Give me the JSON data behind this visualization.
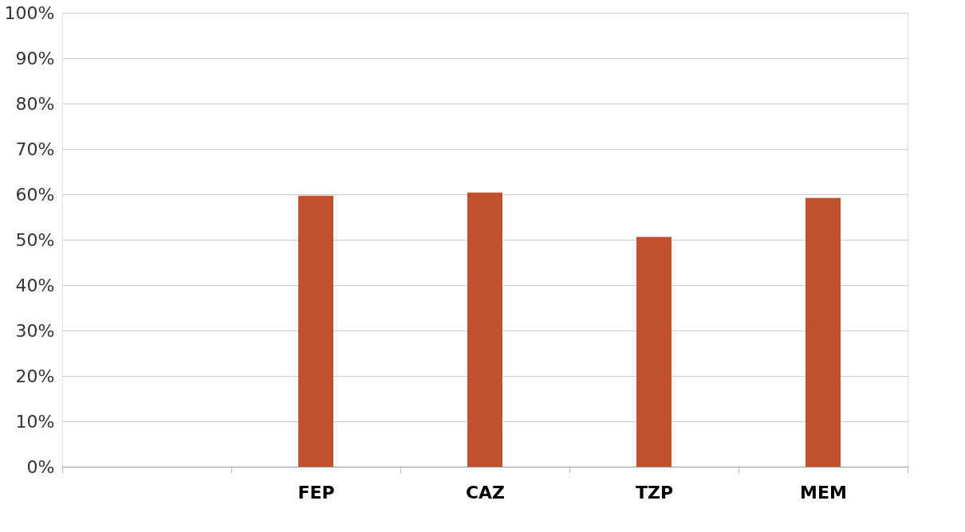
{
  "chart_data": {
    "type": "bar",
    "categories": [
      null,
      "FEP",
      "CAZ",
      "TZP",
      "MEM"
    ],
    "series": [
      {
        "color": "#c0502e",
        "values": [
          null,
          59.7,
          60.4,
          50.6,
          59.2
        ]
      }
    ],
    "ylim": [
      0,
      100
    ],
    "yticks": [
      {
        "value": 0,
        "label": "0%"
      },
      {
        "value": 10,
        "label": "10%"
      },
      {
        "value": 20,
        "label": "20%"
      },
      {
        "value": 30,
        "label": "30%"
      },
      {
        "value": 40,
        "label": "40%"
      },
      {
        "value": 50,
        "label": "50%"
      },
      {
        "value": 60,
        "label": "60%"
      },
      {
        "value": 70,
        "label": "70%"
      },
      {
        "value": 80,
        "label": "80%"
      },
      {
        "value": 90,
        "label": "90%"
      },
      {
        "value": 100,
        "label": "100%"
      }
    ],
    "grid": "y",
    "legend": false
  }
}
